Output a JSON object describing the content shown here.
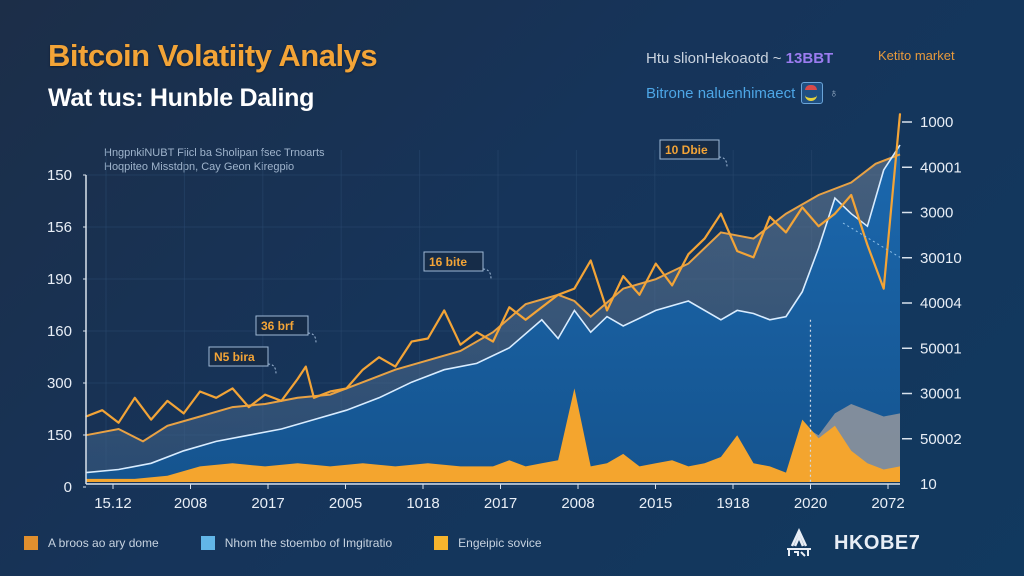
{
  "header": {
    "title": "Bitcoin Volatiity Analys",
    "subtitle": "Wat tus: Hunble Daling",
    "note_lines": [
      "HngpnkiNUBT Fiicl ba Sholipan fsec Trnoarts",
      "Hoqpiteo Misstdpn, Cay  Geon Kiregpio"
    ]
  },
  "top_legend": {
    "line1_text": "Htu slionHekoaotd ~",
    "line1_accent": "13BBT",
    "line2_text": "Bitrone naluenhimaect",
    "line2_icon": "badge-icon",
    "corner_label": "Ketito market"
  },
  "legend": [
    {
      "label": "A broos ao ary dome",
      "color": "#e08f2e"
    },
    {
      "label": "Nhom the stoembo of Imgitratio",
      "color": "#62b6e8"
    },
    {
      "label": "Engeipic sovice",
      "color": "#f6b42d"
    }
  ],
  "brand": {
    "logo_icon": "mountain-logo-icon",
    "name": "HKOBE7"
  },
  "colors": {
    "price_line": "#f3a437",
    "moving_avg": "#e8a245",
    "blue_area": "#1a64a8",
    "white_line": "#d8ecff",
    "volume": "#f4a52e",
    "grey_area": "#8d949c"
  },
  "chart_data": {
    "type": "line",
    "title": "Bitcoin Volatiity Analys",
    "subtitle": "Wat tus: Hunble Daling",
    "xlabel": "",
    "ylabel": "",
    "x_ticks": [
      "15.12",
      "2008",
      "2017",
      "2005",
      "1018",
      "2017",
      "2008",
      "2015",
      "1918",
      "2020",
      "2072"
    ],
    "y_left_ticks": [
      "150",
      "156",
      "190",
      "160",
      "300",
      "150",
      "0"
    ],
    "y_right_ticks": [
      "1000",
      "40001",
      "3000",
      "30010",
      "40004",
      "50001",
      "30001",
      "50002",
      "10"
    ],
    "ylim": [
      0,
      1
    ],
    "grid": true,
    "legend_position": "bottom-left",
    "annotations": [
      {
        "text": "N5 bira",
        "x": 0.22
      },
      {
        "text": "36 brf",
        "x": 0.255
      },
      {
        "text": "16 bite",
        "x": 0.485
      },
      {
        "text": "10 Dbie",
        "x": 0.755
      }
    ],
    "series": [
      {
        "name": "Price (orange)",
        "x": [
          0,
          0.02,
          0.04,
          0.06,
          0.08,
          0.1,
          0.12,
          0.14,
          0.16,
          0.18,
          0.2,
          0.22,
          0.24,
          0.26,
          0.27,
          0.28,
          0.3,
          0.32,
          0.34,
          0.36,
          0.38,
          0.4,
          0.42,
          0.44,
          0.46,
          0.48,
          0.5,
          0.52,
          0.54,
          0.56,
          0.58,
          0.6,
          0.62,
          0.64,
          0.66,
          0.68,
          0.7,
          0.72,
          0.74,
          0.76,
          0.78,
          0.8,
          0.82,
          0.84,
          0.86,
          0.88,
          0.9,
          0.92,
          0.94,
          0.96,
          0.98,
          1.0
        ],
        "values": [
          0.21,
          0.23,
          0.19,
          0.27,
          0.2,
          0.26,
          0.22,
          0.29,
          0.27,
          0.3,
          0.24,
          0.28,
          0.26,
          0.33,
          0.37,
          0.27,
          0.29,
          0.3,
          0.36,
          0.4,
          0.37,
          0.45,
          0.46,
          0.55,
          0.44,
          0.48,
          0.45,
          0.56,
          0.52,
          0.56,
          0.6,
          0.62,
          0.71,
          0.55,
          0.66,
          0.6,
          0.7,
          0.63,
          0.73,
          0.78,
          0.86,
          0.74,
          0.72,
          0.85,
          0.8,
          0.88,
          0.82,
          0.86,
          0.92,
          0.76,
          0.62,
          1.18
        ]
      },
      {
        "name": "Moving average (orange)",
        "x": [
          0,
          0.04,
          0.07,
          0.1,
          0.14,
          0.18,
          0.22,
          0.26,
          0.3,
          0.34,
          0.38,
          0.42,
          0.46,
          0.5,
          0.54,
          0.58,
          0.6,
          0.62,
          0.66,
          0.7,
          0.74,
          0.78,
          0.82,
          0.86,
          0.9,
          0.94,
          0.97,
          1.0
        ],
        "values": [
          0.15,
          0.17,
          0.13,
          0.18,
          0.21,
          0.24,
          0.25,
          0.27,
          0.28,
          0.32,
          0.36,
          0.39,
          0.42,
          0.48,
          0.57,
          0.6,
          0.58,
          0.53,
          0.62,
          0.65,
          0.7,
          0.8,
          0.78,
          0.86,
          0.92,
          0.96,
          1.02,
          1.05
        ]
      },
      {
        "name": "White line",
        "x": [
          0,
          0.04,
          0.08,
          0.12,
          0.16,
          0.2,
          0.24,
          0.28,
          0.32,
          0.36,
          0.4,
          0.44,
          0.48,
          0.52,
          0.56,
          0.58,
          0.6,
          0.62,
          0.64,
          0.66,
          0.7,
          0.74,
          0.78,
          0.8,
          0.82,
          0.84,
          0.86,
          0.88,
          0.9,
          0.92,
          0.94,
          0.96,
          0.98,
          1.0
        ],
        "values": [
          0.03,
          0.04,
          0.06,
          0.1,
          0.13,
          0.15,
          0.17,
          0.2,
          0.23,
          0.27,
          0.32,
          0.36,
          0.38,
          0.43,
          0.52,
          0.46,
          0.55,
          0.48,
          0.53,
          0.5,
          0.55,
          0.58,
          0.52,
          0.55,
          0.54,
          0.52,
          0.53,
          0.61,
          0.75,
          0.91,
          0.86,
          0.82,
          1.0,
          1.08
        ]
      },
      {
        "name": "Volume (orange area)",
        "x": [
          0,
          0.06,
          0.1,
          0.14,
          0.18,
          0.22,
          0.26,
          0.3,
          0.34,
          0.38,
          0.42,
          0.46,
          0.5,
          0.52,
          0.54,
          0.56,
          0.58,
          0.6,
          0.62,
          0.64,
          0.66,
          0.68,
          0.7,
          0.72,
          0.74,
          0.76,
          0.78,
          0.8,
          0.82,
          0.84,
          0.86,
          0.88,
          0.9,
          0.92,
          0.94,
          0.96,
          0.98,
          1.0
        ],
        "values": [
          0.01,
          0.01,
          0.02,
          0.05,
          0.06,
          0.05,
          0.06,
          0.05,
          0.06,
          0.05,
          0.06,
          0.05,
          0.05,
          0.07,
          0.05,
          0.06,
          0.07,
          0.3,
          0.05,
          0.06,
          0.09,
          0.05,
          0.06,
          0.07,
          0.05,
          0.06,
          0.08,
          0.15,
          0.06,
          0.05,
          0.03,
          0.2,
          0.14,
          0.18,
          0.1,
          0.06,
          0.04,
          0.05
        ]
      },
      {
        "name": "Grey area",
        "x": [
          0.86,
          0.88,
          0.9,
          0.92,
          0.94,
          0.96,
          0.98,
          1.0
        ],
        "values": [
          0.0,
          0.18,
          0.15,
          0.22,
          0.25,
          0.23,
          0.21,
          0.22
        ]
      }
    ]
  }
}
